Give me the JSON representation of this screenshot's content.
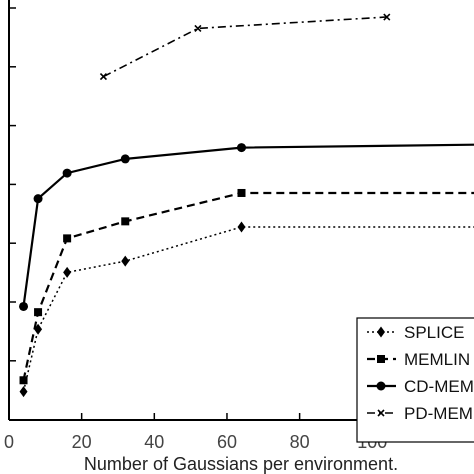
{
  "chart_data": {
    "type": "line",
    "title": "",
    "xlabel": "Number of Gaussians per environment.",
    "ylabel": "",
    "xlim": [
      0,
      128
    ],
    "ylim": [
      0,
      7.4
    ],
    "x_ticks": [
      0,
      20,
      40,
      60,
      80,
      100
    ],
    "y_ticks_count": 7,
    "grid": false,
    "legend_position": "bottom-right",
    "series": [
      {
        "name": "SPLICE",
        "style": "dotted",
        "marker": "diamond",
        "color": "#000000",
        "x": [
          4,
          8,
          16,
          32,
          64,
          128
        ],
        "y": [
          0.5,
          1.6,
          2.6,
          2.8,
          3.4,
          3.4
        ]
      },
      {
        "name": "MEMLIN",
        "style": "dashed",
        "marker": "square",
        "color": "#000000",
        "x": [
          4,
          8,
          16,
          32,
          64,
          128
        ],
        "y": [
          0.7,
          1.9,
          3.2,
          3.5,
          4.0,
          4.0
        ]
      },
      {
        "name": "CD-MEM",
        "style": "solid",
        "marker": "circle",
        "color": "#000000",
        "x": [
          4,
          8,
          16,
          32,
          64,
          128
        ],
        "y": [
          2.0,
          3.9,
          4.35,
          4.6,
          4.8,
          4.85
        ]
      },
      {
        "name": "PD-MEM",
        "style": "dashdot",
        "marker": "x",
        "color": "#000000",
        "x": [
          26,
          52,
          104
        ],
        "y": [
          6.05,
          6.9,
          7.1
        ]
      }
    ]
  }
}
